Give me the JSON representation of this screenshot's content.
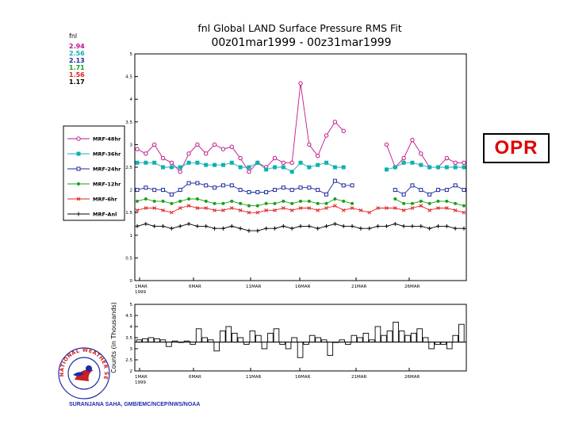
{
  "header": {
    "title": "fnl Global LAND Surface Pressure RMS Fit",
    "subtitle": "00z01mar1999 - 00z31mar1999"
  },
  "stats": {
    "label": "fnl",
    "values": [
      {
        "text": "2.94",
        "color": "#c0148c"
      },
      {
        "text": "2.56",
        "color": "#10b0b0"
      },
      {
        "text": "2.13",
        "color": "#1c2a9c"
      },
      {
        "text": "1.71",
        "color": "#18a018"
      },
      {
        "text": "1.56",
        "color": "#e02020"
      },
      {
        "text": "1.17",
        "color": "#000000"
      }
    ]
  },
  "badge": {
    "label": "OPR"
  },
  "credit": "SURANJANA SAHA, GMB/EMC/NCEP/NWS/NOAA",
  "logo": {
    "text": "NATIONAL WEATHER SERVICE"
  },
  "chart_data": [
    {
      "type": "line",
      "title": "fnl Global LAND Surface Pressure RMS Fit",
      "ylim": [
        0,
        5
      ],
      "yticks": [
        "0",
        "0.5",
        "1",
        "1.5",
        "2",
        "2.5",
        "3",
        "3.5",
        "4",
        "4.5",
        "5"
      ],
      "xlim": [
        1,
        31
      ],
      "xticks": [
        {
          "label": "1MAR",
          "sub": "1999"
        },
        {
          "label": "6MAR",
          "sub": ""
        },
        {
          "label": "11MAR",
          "sub": ""
        },
        {
          "label": "16MAR",
          "sub": ""
        },
        {
          "label": "21MAR",
          "sub": ""
        },
        {
          "label": "26MAR",
          "sub": ""
        }
      ],
      "legend_position": "left",
      "series": [
        {
          "name": "MRF-48hr",
          "color": "#c0148c",
          "marker": "circle",
          "values": [
            2.9,
            2.8,
            3.0,
            2.7,
            2.6,
            2.4,
            2.8,
            3.0,
            2.8,
            3.0,
            2.9,
            2.95,
            2.7,
            2.4,
            2.6,
            2.5,
            2.7,
            2.6,
            2.6,
            4.35,
            3.0,
            2.75,
            3.2,
            3.5,
            3.3,
            null,
            null,
            null,
            null,
            3.0,
            2.5,
            2.7,
            3.1,
            2.8,
            2.5,
            2.5,
            2.7,
            2.6,
            2.6
          ]
        },
        {
          "name": "MRF-36hr",
          "color": "#10b0b0",
          "marker": "square",
          "values": [
            2.6,
            2.6,
            2.6,
            2.5,
            2.5,
            2.5,
            2.6,
            2.6,
            2.55,
            2.55,
            2.55,
            2.6,
            2.5,
            2.5,
            2.6,
            2.45,
            2.5,
            2.5,
            2.4,
            2.6,
            2.5,
            2.55,
            2.6,
            2.5,
            2.5,
            null,
            null,
            null,
            null,
            2.45,
            2.5,
            2.6,
            2.6,
            2.55,
            2.5,
            2.5,
            2.5,
            2.5,
            2.5
          ]
        },
        {
          "name": "MRF-24hr",
          "color": "#1c2a9c",
          "marker": "open-square",
          "values": [
            2.0,
            2.05,
            2.0,
            2.0,
            1.9,
            2.0,
            2.15,
            2.15,
            2.1,
            2.05,
            2.1,
            2.1,
            2.0,
            1.95,
            1.95,
            1.95,
            2.0,
            2.05,
            2.0,
            2.05,
            2.05,
            2.0,
            1.9,
            2.2,
            2.1,
            2.1,
            null,
            null,
            null,
            null,
            2.0,
            1.9,
            2.1,
            2.0,
            1.9,
            2.0,
            2.0,
            2.1,
            2.0
          ]
        },
        {
          "name": "MRF-12hr",
          "color": "#18a018",
          "marker": "dot",
          "values": [
            1.75,
            1.8,
            1.75,
            1.75,
            1.7,
            1.75,
            1.8,
            1.8,
            1.75,
            1.7,
            1.7,
            1.75,
            1.7,
            1.65,
            1.65,
            1.7,
            1.7,
            1.75,
            1.7,
            1.75,
            1.75,
            1.7,
            1.7,
            1.8,
            1.75,
            1.7,
            null,
            null,
            null,
            null,
            1.8,
            1.7,
            1.7,
            1.75,
            1.7,
            1.75,
            1.75,
            1.7,
            1.65
          ]
        },
        {
          "name": "MRF-6hr",
          "color": "#e02020",
          "marker": "x",
          "values": [
            1.55,
            1.6,
            1.6,
            1.55,
            1.5,
            1.6,
            1.65,
            1.6,
            1.6,
            1.55,
            1.55,
            1.6,
            1.55,
            1.5,
            1.5,
            1.55,
            1.55,
            1.6,
            1.55,
            1.6,
            1.6,
            1.55,
            1.6,
            1.65,
            1.55,
            1.6,
            1.55,
            1.5,
            1.6,
            1.6,
            1.6,
            1.55,
            1.6,
            1.65,
            1.55,
            1.6,
            1.6,
            1.55,
            1.5
          ]
        },
        {
          "name": "MRF-Anl",
          "color": "#000000",
          "marker": "plus",
          "values": [
            1.2,
            1.25,
            1.2,
            1.2,
            1.15,
            1.2,
            1.25,
            1.2,
            1.2,
            1.15,
            1.15,
            1.2,
            1.15,
            1.1,
            1.1,
            1.15,
            1.15,
            1.2,
            1.15,
            1.2,
            1.2,
            1.15,
            1.2,
            1.25,
            1.2,
            1.2,
            1.15,
            1.15,
            1.2,
            1.2,
            1.25,
            1.2,
            1.2,
            1.2,
            1.15,
            1.2,
            1.2,
            1.15,
            1.15
          ]
        }
      ]
    },
    {
      "type": "bar",
      "title": "Counts (in Thousands)",
      "ylabel": "Counts (in Thousands)",
      "ylim": [
        2,
        5
      ],
      "yticks": [
        "2",
        "2.5",
        "3",
        "3.5",
        "4",
        "4.5",
        "5"
      ],
      "baseline": 3.3,
      "xticks": [
        {
          "label": "1MAR",
          "sub": "1999"
        },
        {
          "label": "6MAR",
          "sub": ""
        },
        {
          "label": "11MAR",
          "sub": ""
        },
        {
          "label": "16MAR",
          "sub": ""
        },
        {
          "label": "21MAR",
          "sub": ""
        },
        {
          "label": "26MAR",
          "sub": ""
        }
      ],
      "values": [
        3.4,
        3.45,
        3.5,
        3.45,
        3.4,
        3.1,
        3.35,
        3.3,
        3.35,
        3.2,
        3.9,
        3.5,
        3.4,
        2.9,
        3.8,
        4.0,
        3.7,
        3.5,
        3.2,
        3.8,
        3.6,
        3.0,
        3.7,
        3.9,
        3.2,
        3.0,
        3.5,
        2.6,
        3.2,
        3.6,
        3.5,
        3.4,
        2.7,
        3.3,
        3.4,
        3.2,
        3.6,
        3.5,
        3.7,
        3.4,
        4.0,
        3.6,
        3.8,
        4.2,
        3.8,
        3.6,
        3.7,
        3.9,
        3.5,
        3.0,
        3.2,
        3.2,
        3.0,
        3.6,
        4.1
      ]
    }
  ]
}
